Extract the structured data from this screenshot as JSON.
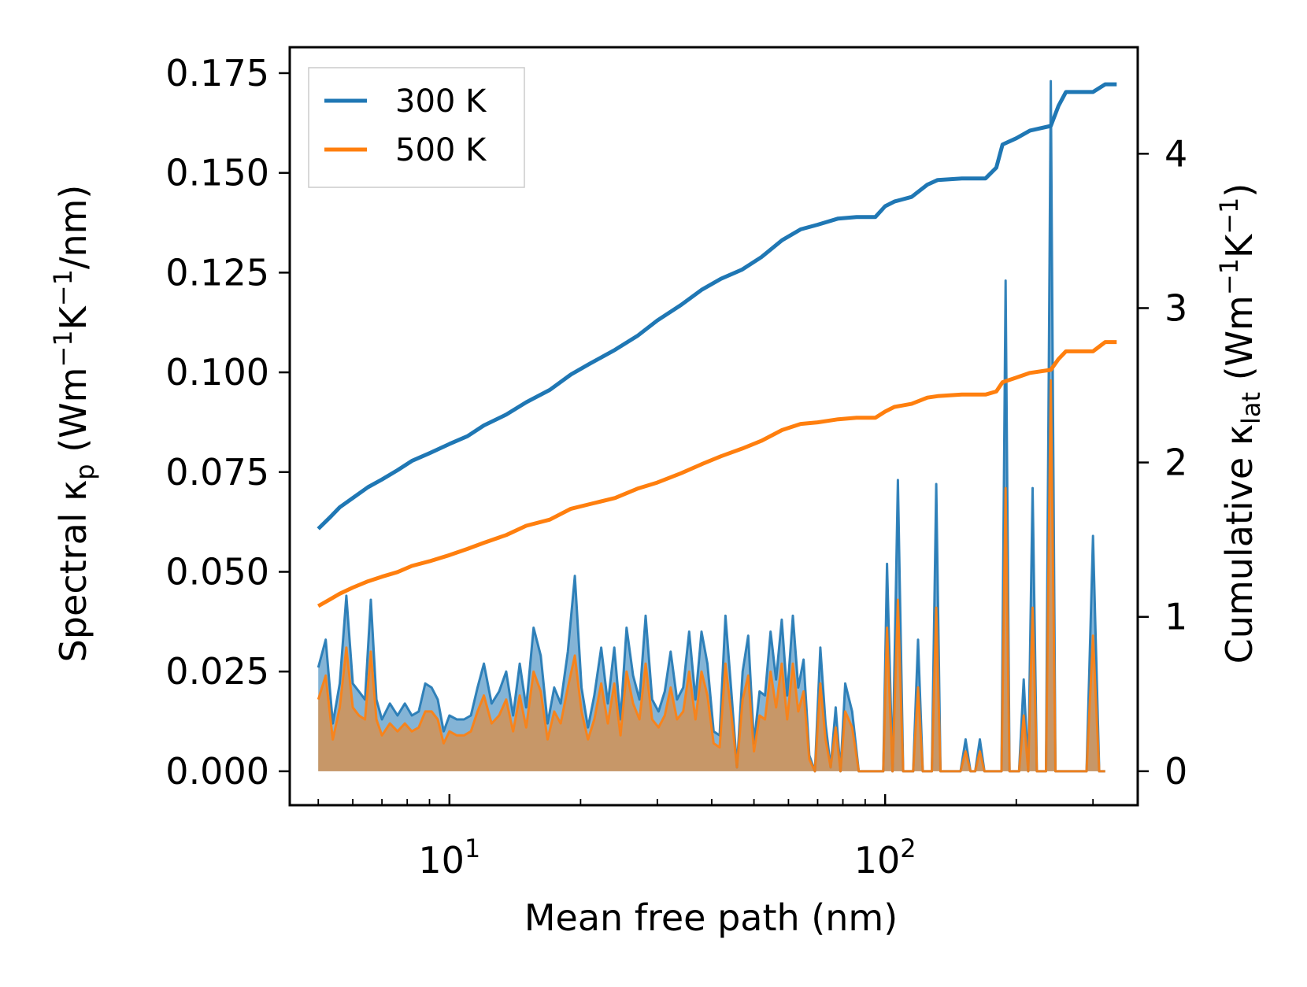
{
  "chart_data": {
    "type": "line",
    "title": "",
    "xlabel": "Mean free path (nm)",
    "xscale": "log",
    "xlim": [
      4.3,
      380
    ],
    "x_ticks": [
      {
        "value": 10,
        "base": "10",
        "exp": "1"
      },
      {
        "value": 100,
        "base": "10",
        "exp": "2"
      }
    ],
    "left_axis": {
      "label_prefix": "Spectral κ",
      "label_sub": "p",
      "label_units": " (Wm",
      "label_exp1": "−1",
      "label_mid": "K",
      "label_exp2": "−1",
      "label_end": "/nm)",
      "ylim": [
        -0.0085,
        0.1815
      ],
      "tick_labels": [
        "0.000",
        "0.025",
        "0.050",
        "0.075",
        "0.100",
        "0.125",
        "0.150",
        "0.175"
      ],
      "tick_values": [
        0,
        0.025,
        0.05,
        0.075,
        0.1,
        0.125,
        0.15,
        0.175
      ]
    },
    "right_axis": {
      "label_prefix": "Cumulative κ",
      "label_sub": "lat",
      "label_units": " (Wm",
      "label_exp1": "−1",
      "label_mid": "K",
      "label_exp2": "−1",
      "label_end": ")",
      "ylim": [
        -0.22,
        4.69
      ],
      "tick_labels": [
        "0",
        "1",
        "2",
        "3",
        "4"
      ],
      "tick_values": [
        0,
        1,
        2,
        3,
        4
      ]
    },
    "legend": {
      "placement": "upper-left",
      "entries": [
        "300 K",
        "500 K"
      ]
    },
    "colors": {
      "300 K": "#1f77b4",
      "500 K": "#ff7f0e",
      "overlap": "#c49a6c"
    },
    "spectral_x": [
      5.0,
      5.2,
      5.4,
      5.6,
      5.8,
      6.0,
      6.2,
      6.4,
      6.6,
      6.8,
      7.0,
      7.3,
      7.6,
      7.9,
      8.2,
      8.5,
      8.8,
      9.1,
      9.4,
      9.7,
      10.0,
      10.4,
      10.8,
      11.2,
      11.6,
      12.0,
      12.5,
      13.0,
      13.5,
      14.0,
      14.5,
      15.0,
      15.6,
      16.2,
      16.8,
      17.4,
      18.0,
      18.7,
      19.4,
      20.1,
      20.8,
      21.5,
      22.3,
      23.1,
      23.9,
      24.7,
      25.5,
      26.4,
      27.3,
      28.2,
      29.2,
      30.2,
      31.2,
      32.2,
      33.3,
      34.4,
      35.5,
      36.7,
      37.9,
      39.1,
      40.4,
      41.7,
      43.0,
      44.3,
      45.7,
      47.1,
      48.5,
      50.0,
      51.5,
      53.0,
      54.6,
      56.2,
      57.9,
      59.6,
      61.4,
      63.2,
      65.0,
      67.0,
      69.0,
      71.0,
      73.0,
      75.0,
      77.0,
      79.0,
      81.0,
      84.0,
      87.0,
      90.0,
      93.0,
      96.0,
      99.0,
      101.0,
      104.0,
      107.0,
      110.0,
      113.0,
      116.0,
      119.0,
      122.0,
      125.0,
      128.0,
      131.0,
      134.0,
      137.0,
      141.0,
      145.0,
      149.0,
      153.0,
      157.0,
      161.0,
      165.0,
      169.0,
      173.0,
      177.0,
      181.0,
      185.0,
      189.0,
      193.0,
      198.0,
      203.0,
      208.0,
      213.0,
      218.0,
      223.0,
      228.0,
      234.0,
      240.0,
      246.0,
      252.0,
      258.0,
      264.0,
      270.0,
      280.0,
      290.0,
      300.0,
      310.0,
      320.0,
      330.0,
      340.0
    ],
    "spectral_300K": [
      0.026,
      0.033,
      0.012,
      0.022,
      0.044,
      0.022,
      0.02,
      0.018,
      0.043,
      0.018,
      0.013,
      0.017,
      0.014,
      0.017,
      0.014,
      0.015,
      0.022,
      0.021,
      0.018,
      0.01,
      0.014,
      0.013,
      0.013,
      0.014,
      0.021,
      0.027,
      0.017,
      0.02,
      0.025,
      0.014,
      0.027,
      0.016,
      0.036,
      0.029,
      0.012,
      0.021,
      0.017,
      0.03,
      0.049,
      0.021,
      0.011,
      0.019,
      0.031,
      0.017,
      0.031,
      0.013,
      0.036,
      0.024,
      0.018,
      0.039,
      0.018,
      0.015,
      0.02,
      0.03,
      0.018,
      0.021,
      0.035,
      0.018,
      0.035,
      0.027,
      0.01,
      0.009,
      0.039,
      0.021,
      0.001,
      0.025,
      0.034,
      0.007,
      0.02,
      0.019,
      0.035,
      0.023,
      0.038,
      0.019,
      0.039,
      0.021,
      0.028,
      0.004,
      0.0,
      0.031,
      0.012,
      0.001,
      0.016,
      0.0,
      0.022,
      0.015,
      0.0,
      0.0,
      0.0,
      0.0,
      0.0,
      0.052,
      0.0,
      0.073,
      0.0,
      0.0,
      0.0,
      0.033,
      0.0,
      0.0,
      0.0,
      0.072,
      0.0,
      0.0,
      0.0,
      0.0,
      0.0,
      0.008,
      0.0,
      0.0,
      0.008,
      0.0,
      0.0,
      0.0,
      0.0,
      0.0,
      0.123,
      0.0,
      0.0,
      0.0,
      0.023,
      0.0,
      0.071,
      0.0,
      0.0,
      0.0,
      0.173,
      0.0,
      0.0,
      0.0,
      0.0,
      0.0,
      0.0,
      0.0,
      0.059,
      0.0,
      0.0
    ],
    "spectral_500K": [
      0.018,
      0.024,
      0.008,
      0.016,
      0.031,
      0.016,
      0.014,
      0.013,
      0.03,
      0.013,
      0.009,
      0.012,
      0.01,
      0.012,
      0.01,
      0.011,
      0.015,
      0.015,
      0.013,
      0.007,
      0.01,
      0.009,
      0.009,
      0.01,
      0.015,
      0.019,
      0.012,
      0.014,
      0.018,
      0.01,
      0.019,
      0.011,
      0.025,
      0.02,
      0.008,
      0.015,
      0.012,
      0.021,
      0.029,
      0.015,
      0.008,
      0.013,
      0.022,
      0.012,
      0.022,
      0.009,
      0.025,
      0.017,
      0.013,
      0.027,
      0.013,
      0.011,
      0.014,
      0.021,
      0.013,
      0.015,
      0.025,
      0.013,
      0.025,
      0.019,
      0.007,
      0.006,
      0.027,
      0.015,
      0.001,
      0.018,
      0.024,
      0.005,
      0.014,
      0.013,
      0.025,
      0.016,
      0.027,
      0.013,
      0.027,
      0.015,
      0.02,
      0.003,
      0.0,
      0.022,
      0.008,
      0.001,
      0.011,
      0.0,
      0.015,
      0.011,
      0.0,
      0.0,
      0.0,
      0.0,
      0.0,
      0.036,
      0.0,
      0.043,
      0.0,
      0.0,
      0.0,
      0.021,
      0.0,
      0.0,
      0.0,
      0.041,
      0.0,
      0.0,
      0.0,
      0.0,
      0.0,
      0.005,
      0.0,
      0.0,
      0.005,
      0.0,
      0.0,
      0.0,
      0.0,
      0.0,
      0.071,
      0.0,
      0.0,
      0.0,
      0.014,
      0.0,
      0.041,
      0.0,
      0.0,
      0.0,
      0.098,
      0.0,
      0.0,
      0.0,
      0.0,
      0.0,
      0.0,
      0.0,
      0.034,
      0.0,
      0.0
    ],
    "cumulative_x": [
      5.0,
      5.3,
      5.6,
      6.0,
      6.5,
      7.0,
      7.6,
      8.2,
      9.0,
      10.0,
      11.0,
      12.0,
      13.5,
      15.0,
      17.0,
      19.0,
      21.0,
      24.0,
      27.0,
      30.0,
      34.0,
      38.0,
      42.0,
      47.0,
      52.0,
      58.0,
      64.0,
      70.0,
      78.0,
      86.0,
      95.0,
      100.0,
      105.0,
      115.0,
      125.0,
      132.0,
      150.0,
      170.0,
      180.0,
      186.0,
      200.0,
      215.0,
      240.0,
      250.0,
      260.0,
      300.0,
      320.0,
      340.0
    ],
    "cumulative_300K": [
      1.57,
      1.64,
      1.71,
      1.77,
      1.84,
      1.89,
      1.95,
      2.01,
      2.06,
      2.12,
      2.17,
      2.24,
      2.31,
      2.39,
      2.47,
      2.57,
      2.64,
      2.73,
      2.82,
      2.92,
      3.02,
      3.12,
      3.19,
      3.25,
      3.33,
      3.44,
      3.51,
      3.54,
      3.58,
      3.59,
      3.59,
      3.66,
      3.69,
      3.72,
      3.8,
      3.83,
      3.84,
      3.84,
      3.91,
      4.06,
      4.1,
      4.15,
      4.18,
      4.31,
      4.4,
      4.4,
      4.45,
      4.45
    ],
    "cumulative_500K": [
      1.07,
      1.11,
      1.15,
      1.19,
      1.23,
      1.26,
      1.29,
      1.33,
      1.36,
      1.4,
      1.44,
      1.48,
      1.53,
      1.59,
      1.63,
      1.7,
      1.73,
      1.77,
      1.83,
      1.87,
      1.93,
      1.99,
      2.04,
      2.09,
      2.14,
      2.21,
      2.25,
      2.26,
      2.28,
      2.29,
      2.29,
      2.33,
      2.36,
      2.38,
      2.42,
      2.43,
      2.44,
      2.44,
      2.46,
      2.52,
      2.55,
      2.58,
      2.6,
      2.67,
      2.72,
      2.72,
      2.78,
      2.78
    ]
  }
}
